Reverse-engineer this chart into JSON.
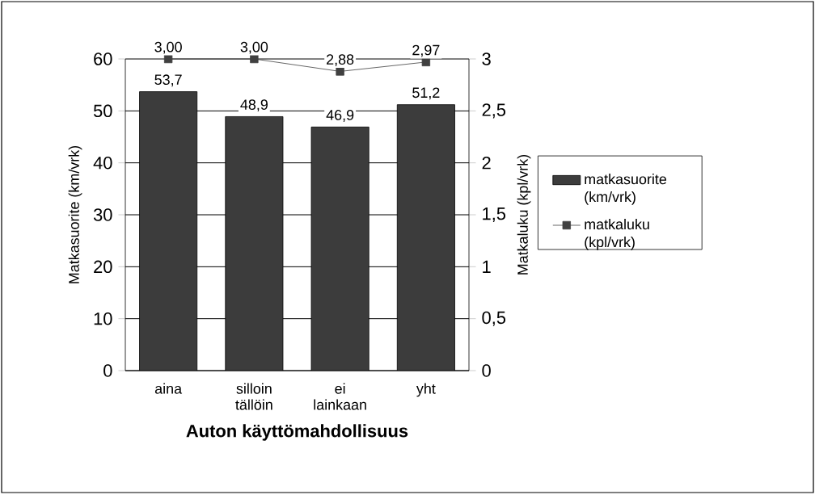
{
  "chart_data": {
    "type": "bar",
    "categories": [
      "aina",
      "silloin tällöin",
      "ei lainkaan",
      "yht"
    ],
    "xlabel": "Auton käyttömahdollisuus",
    "ylabel": "Matkasuorite (km/vrk)",
    "y2label": "Matkaluku (kpl/vrk)",
    "ylim": [
      0,
      60
    ],
    "yticks": [
      0,
      10,
      20,
      30,
      40,
      50,
      60
    ],
    "y2lim": [
      0,
      3
    ],
    "y2ticks": [
      0,
      {
        "value": 0.5,
        "label": "0,5"
      },
      1,
      {
        "value": 1.5,
        "label": "1,5"
      },
      2,
      {
        "value": 2.5,
        "label": "2,5"
      },
      3
    ],
    "grid": "y",
    "legend": "right",
    "series": [
      {
        "name": "matkasuorite (km/vrk)",
        "color": "#3c3c3c",
        "values": [
          53.7,
          48.9,
          46.9,
          51.2
        ],
        "value_labels": [
          "53,7",
          "48,9",
          "46,9",
          "51,2"
        ]
      },
      {
        "name": "matkaluku (kpl/vrk)",
        "type": "line",
        "axis": "y2",
        "color": "#404040",
        "marker": "square",
        "values": [
          3.0,
          3.0,
          2.88,
          2.97
        ],
        "value_labels": [
          "3,00",
          "3,00",
          "2,88",
          "2,97"
        ]
      }
    ]
  }
}
